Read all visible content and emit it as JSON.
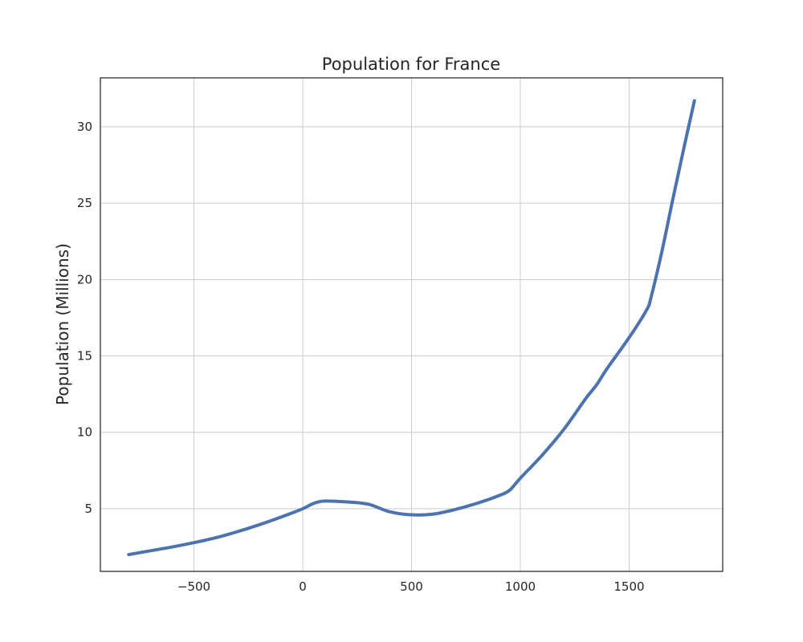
{
  "chart_data": {
    "type": "line",
    "title": "Population for France",
    "xlabel": "",
    "ylabel": "Population (Millions)",
    "xlim": [
      -930,
      1930
    ],
    "ylim": [
      0.9,
      33.2
    ],
    "x_ticks": [
      -500,
      0,
      500,
      1000,
      1500
    ],
    "x_tick_labels": [
      "−500",
      "0",
      "500",
      "1000",
      "1500"
    ],
    "y_ticks": [
      5,
      10,
      15,
      20,
      25,
      30
    ],
    "y_tick_labels": [
      "5",
      "10",
      "15",
      "20",
      "25",
      "30"
    ],
    "grid": true,
    "legend": "none",
    "series": [
      {
        "color": "#4c72b0",
        "x": [
          -800,
          -700,
          -600,
          -500,
          -400,
          -300,
          -200,
          -100,
          0,
          50,
          100,
          200,
          300,
          400,
          500,
          600,
          700,
          800,
          900,
          950,
          1000,
          1100,
          1200,
          1300,
          1350,
          1400,
          1500,
          1580,
          1600,
          1650,
          1700,
          1750,
          1800
        ],
        "y": [
          2.0,
          2.25,
          2.5,
          2.78,
          3.1,
          3.5,
          3.95,
          4.45,
          5.0,
          5.35,
          5.5,
          5.45,
          5.3,
          4.8,
          4.6,
          4.65,
          4.95,
          5.35,
          5.85,
          6.2,
          7.0,
          8.5,
          10.2,
          12.2,
          13.1,
          14.2,
          16.2,
          18.0,
          18.8,
          21.8,
          25.2,
          28.5,
          31.7
        ]
      }
    ]
  }
}
